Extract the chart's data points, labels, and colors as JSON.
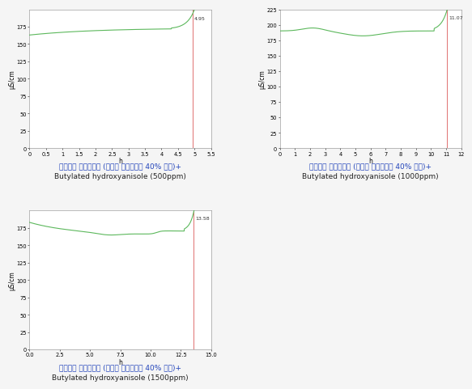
{
  "chart1": {
    "title_line1": "미세조류 바이오디젠 (유체유 바이오디젠 40% 혼합)+",
    "title_line2": "Butylated hydroxyanisole (500ppm)",
    "xlabel": "h",
    "ylabel": "μS/cm",
    "xmin": 0.0,
    "xmax": 5.5,
    "ymin": 0,
    "ymax": 200,
    "yticks": [
      0,
      25,
      50,
      75,
      100,
      125,
      150,
      175
    ],
    "xticks": [
      0.0,
      0.5,
      1.0,
      1.5,
      2.0,
      2.5,
      3.0,
      3.5,
      4.0,
      4.5,
      5.0,
      5.5
    ],
    "vline_x": 4.95,
    "vline_label": "4.95"
  },
  "chart2": {
    "title_line1": "미세조류 바이오디젠 (유체유 바이오디젠 40% 혼합)+",
    "title_line2": "Butylated hydroxyanisole (1000ppm)",
    "xlabel": "h",
    "ylabel": "μS/cm",
    "xmin": 0,
    "xmax": 12,
    "ymin": 0,
    "ymax": 225,
    "yticks": [
      0,
      25,
      50,
      75,
      100,
      125,
      150,
      175,
      200,
      225
    ],
    "xticks": [
      0,
      1,
      2,
      3,
      4,
      5,
      6,
      7,
      8,
      9,
      10,
      11,
      12
    ],
    "vline_x": 11.07,
    "vline_label": "11.07"
  },
  "chart3": {
    "title_line1": "미세조류 바이오디젠 (유체유 바이오디젠 40% 혼합)+",
    "title_line2": "Butylated hydroxyanisole (1500ppm)",
    "xlabel": "h",
    "ylabel": "μS/cm",
    "xmin": 0.0,
    "xmax": 15.0,
    "ymin": 0,
    "ymax": 200,
    "yticks": [
      0,
      25,
      50,
      75,
      100,
      125,
      150,
      175
    ],
    "xticks": [
      0.0,
      2.5,
      5.0,
      7.5,
      10.0,
      12.5,
      15.0
    ],
    "vline_x": 13.58,
    "vline_label": "13.58"
  },
  "line_color": "#5cb85c",
  "vline_color": "#e07070",
  "bg_color": "#f5f5f5",
  "plot_bg_color": "#ffffff",
  "title_color_korean": "#2244bb",
  "title_color_english": "#222222",
  "title_fontsize": 6.5,
  "axis_fontsize": 5.5,
  "tick_fontsize": 4.8,
  "vline_label_fontsize": 4.5
}
